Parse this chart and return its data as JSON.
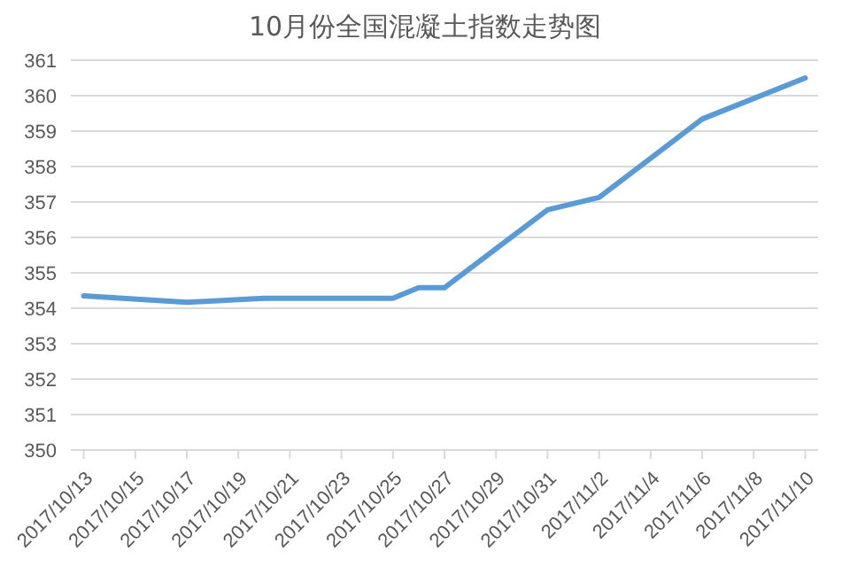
{
  "chart_data": {
    "type": "line",
    "title": "10月份全国混凝土指数走势图",
    "x": [
      "2017-10-13",
      "2017-10-17",
      "2017-10-20",
      "2017-10-25",
      "2017-10-26",
      "2017-10-27",
      "2017-10-31",
      "2017-11-02",
      "2017-11-06",
      "2017-11-10"
    ],
    "series": [
      {
        "color": "#5b9bd5",
        "values": [
          354.35,
          354.17,
          354.28,
          354.28,
          354.58,
          354.58,
          356.78,
          357.13,
          359.34,
          360.5
        ]
      }
    ],
    "xlim": [
      "2017-10-12T12:00",
      "2017-11-10T12:00"
    ],
    "xticks": [
      {
        "value": "2017-10-13",
        "label": "2017/10/13"
      },
      {
        "value": "2017-10-15",
        "label": "2017/10/15"
      },
      {
        "value": "2017-10-17",
        "label": "2017/10/17"
      },
      {
        "value": "2017-10-19",
        "label": "2017/10/19"
      },
      {
        "value": "2017-10-21",
        "label": "2017/10/21"
      },
      {
        "value": "2017-10-23",
        "label": "2017/10/23"
      },
      {
        "value": "2017-10-25",
        "label": "2017/10/25"
      },
      {
        "value": "2017-10-27",
        "label": "2017/10/27"
      },
      {
        "value": "2017-10-29",
        "label": "2017/10/29"
      },
      {
        "value": "2017-10-31",
        "label": "2017/10/31"
      },
      {
        "value": "2017-11-02",
        "label": "2017/11/2"
      },
      {
        "value": "2017-11-04",
        "label": "2017/11/4"
      },
      {
        "value": "2017-11-06",
        "label": "2017/11/6"
      },
      {
        "value": "2017-11-08",
        "label": "2017/11/8"
      },
      {
        "value": "2017-11-10",
        "label": "2017/11/10"
      }
    ],
    "ylim": [
      350,
      361
    ],
    "yticks": [
      350,
      351,
      352,
      353,
      354,
      355,
      356,
      357,
      358,
      359,
      360,
      361
    ],
    "grid": "y",
    "legend": false,
    "marker": "none",
    "line_style": "solid"
  }
}
